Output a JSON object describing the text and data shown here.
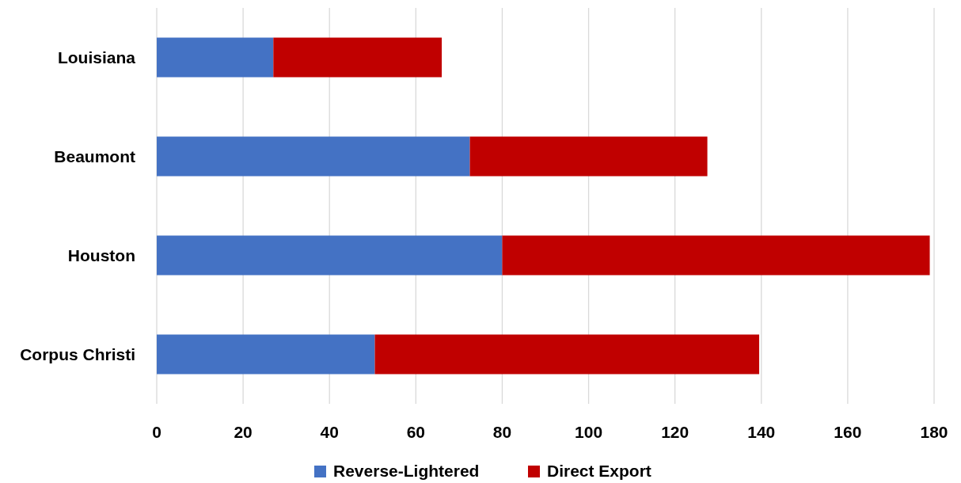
{
  "chart_data": {
    "type": "bar",
    "orientation": "horizontal",
    "stacked": true,
    "categories": [
      "Louisiana",
      "Beaumont",
      "Houston",
      "Corpus Christi"
    ],
    "series": [
      {
        "name": "Reverse-Lightered",
        "color": "#4472c4",
        "values": [
          27,
          72.5,
          80,
          50.5
        ]
      },
      {
        "name": "Direct Export",
        "color": "#c00000",
        "values": [
          39,
          55,
          99,
          89
        ]
      }
    ],
    "xlim": [
      0,
      180
    ],
    "xticks": [
      0,
      20,
      40,
      60,
      80,
      100,
      120,
      140,
      160,
      180
    ],
    "grid": "x",
    "legend": "bottom"
  }
}
